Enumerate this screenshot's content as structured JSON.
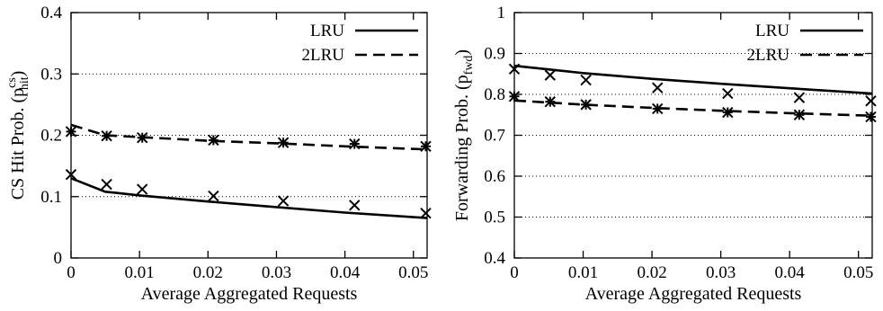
{
  "chart_data": [
    {
      "type": "line",
      "xlabel": "Average Aggregated Requests",
      "ylabel": "CS Hit Prob. (p",
      "ylabel_sub": "hit",
      "ylabel_sup": "cs",
      "ylabel_close": ")",
      "xlim": [
        0,
        0.052
      ],
      "ylim": [
        0,
        0.4
      ],
      "xticks": [
        0,
        0.01,
        0.02,
        0.03,
        0.04,
        0.05
      ],
      "xtick_labels": [
        "0",
        "0.01",
        "0.02",
        "0.03",
        "0.04",
        "0.05"
      ],
      "yticks": [
        0,
        0.1,
        0.2,
        0.3,
        0.4
      ],
      "ytick_labels": [
        "0",
        "0.1",
        "0.2",
        "0.3",
        "0.4"
      ],
      "grid": "horizontal dotted",
      "legend_position": "top-right",
      "series": [
        {
          "name": "LRU",
          "dash": "solid",
          "line_x": [
            0,
            0.005,
            0.01,
            0.02,
            0.03,
            0.04,
            0.052
          ],
          "line_y": [
            0.13,
            0.108,
            0.102,
            0.092,
            0.083,
            0.074,
            0.065
          ],
          "marker": "x",
          "points_x": [
            0,
            0.0052,
            0.0104,
            0.0208,
            0.031,
            0.0414,
            0.0518
          ],
          "points_y": [
            0.136,
            0.12,
            0.112,
            0.101,
            0.093,
            0.086,
            0.073
          ]
        },
        {
          "name": "2LRU",
          "dash": "dashed",
          "line_x": [
            0,
            0.005,
            0.01,
            0.02,
            0.03,
            0.04,
            0.052
          ],
          "line_y": [
            0.217,
            0.2,
            0.197,
            0.191,
            0.187,
            0.182,
            0.177
          ],
          "marker": "asterisk",
          "points_x": [
            0,
            0.0052,
            0.0104,
            0.0208,
            0.031,
            0.0414,
            0.0518
          ],
          "points_y": [
            0.206,
            0.199,
            0.196,
            0.192,
            0.188,
            0.186,
            0.182
          ]
        }
      ]
    },
    {
      "type": "line",
      "xlabel": "Average Aggregated Requests",
      "ylabel": "Forwarding Prob. (p",
      "ylabel_sub": "fwd",
      "ylabel_sup": "",
      "ylabel_close": ")",
      "xlim": [
        0,
        0.052
      ],
      "ylim": [
        0.4,
        1
      ],
      "xticks": [
        0,
        0.01,
        0.02,
        0.03,
        0.04,
        0.05
      ],
      "xtick_labels": [
        "0",
        "0.01",
        "0.02",
        "0.03",
        "0.04",
        "0.05"
      ],
      "yticks": [
        0.4,
        0.5,
        0.6,
        0.7,
        0.8,
        0.9,
        1.0
      ],
      "ytick_labels": [
        "0.4",
        "0.5",
        "0.6",
        "0.7",
        "0.8",
        "0.9",
        "1"
      ],
      "grid": "horizontal dotted",
      "legend_position": "top-right",
      "series": [
        {
          "name": "LRU",
          "dash": "solid",
          "line_x": [
            0,
            0.01,
            0.02,
            0.03,
            0.04,
            0.052
          ],
          "line_y": [
            0.87,
            0.852,
            0.838,
            0.826,
            0.815,
            0.802
          ],
          "marker": "x",
          "points_x": [
            0,
            0.0052,
            0.0104,
            0.0208,
            0.031,
            0.0414,
            0.0518
          ],
          "points_y": [
            0.862,
            0.847,
            0.835,
            0.816,
            0.802,
            0.792,
            0.784
          ]
        },
        {
          "name": "2LRU",
          "dash": "dashed",
          "line_x": [
            0,
            0.01,
            0.02,
            0.03,
            0.04,
            0.052
          ],
          "line_y": [
            0.785,
            0.775,
            0.767,
            0.76,
            0.754,
            0.748
          ],
          "marker": "asterisk",
          "points_x": [
            0,
            0.0052,
            0.0104,
            0.0208,
            0.031,
            0.0414,
            0.0518
          ],
          "points_y": [
            0.795,
            0.782,
            0.775,
            0.765,
            0.756,
            0.75,
            0.745
          ]
        }
      ]
    }
  ]
}
